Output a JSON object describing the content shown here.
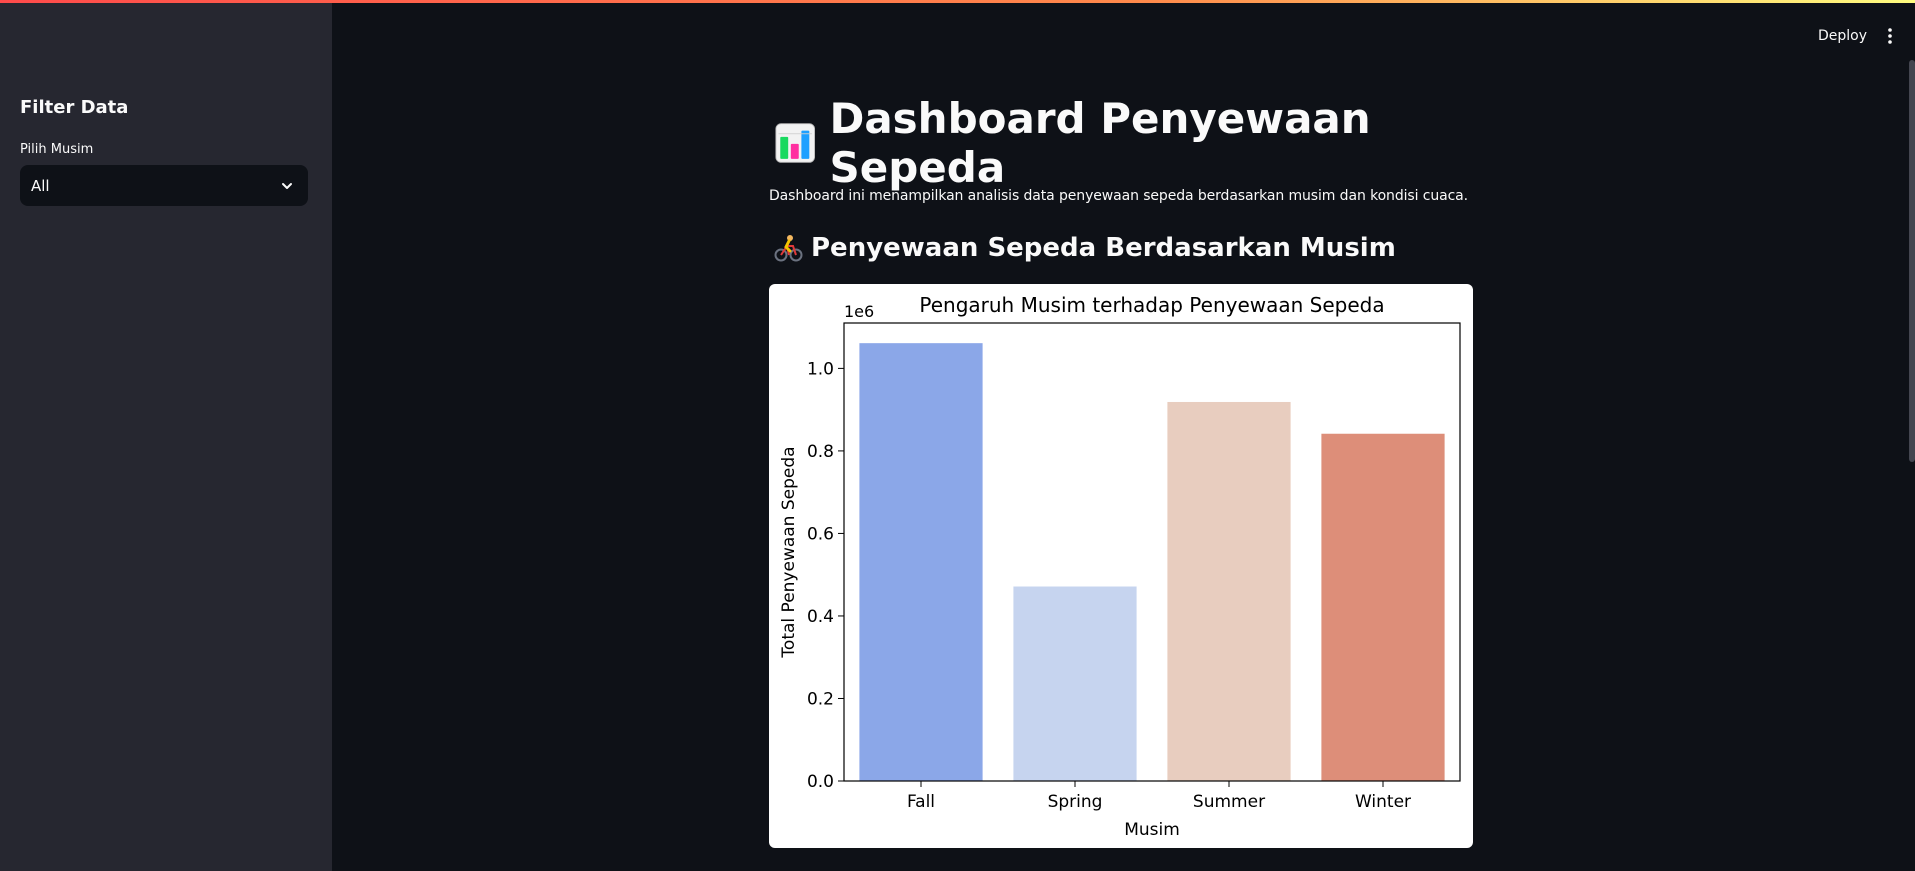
{
  "app": {
    "deploy_label": "Deploy",
    "menu_icon": "more-vertical-icon"
  },
  "sidebar": {
    "title": "Filter Data",
    "season_select": {
      "label": "Pilih Musim",
      "value": "All"
    }
  },
  "main": {
    "title": "Dashboard Penyewaan Sepeda",
    "title_icon": "bar-chart-icon",
    "description": "Dashboard ini menampilkan analisis data penyewaan sepeda berdasarkan musim dan kondisi cuaca.",
    "section_title": "Penyewaan Sepeda Berdasarkan Musim",
    "section_icon": "bicyclist-icon"
  },
  "chart_data": {
    "type": "bar",
    "title": "Pengaruh Musim terhadap Penyewaan Sepeda",
    "xlabel": "Musim",
    "ylabel": "Total Penyewaan Sepeda",
    "scale_label": "1e6",
    "categories": [
      "Fall",
      "Spring",
      "Summer",
      "Winter"
    ],
    "values": [
      1061129,
      471348,
      918589,
      841613
    ],
    "colors": [
      "#8ba7e8",
      "#c6d4ef",
      "#e8cdbf",
      "#dd8e79"
    ],
    "ylim": [
      0,
      1.11
    ],
    "scale": 1000000,
    "yticks": [
      "0.0",
      "0.2",
      "0.4",
      "0.6",
      "0.8",
      "1.0"
    ],
    "grid": false
  }
}
